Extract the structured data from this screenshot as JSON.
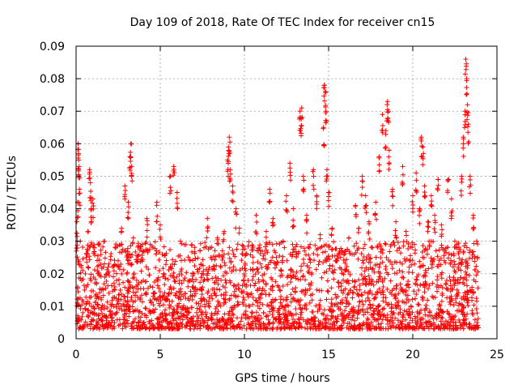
{
  "chart_data": {
    "type": "scatter",
    "title": "Day 109 of 2018, Rate Of TEC Index for receiver cn15",
    "xlabel": "GPS time / hours",
    "ylabel": "ROTI / TECUs",
    "xlim": [
      0,
      25
    ],
    "ylim": [
      0,
      0.09
    ],
    "xticks": [
      0,
      5,
      10,
      15,
      20,
      25
    ],
    "yticks": [
      0,
      0.01,
      0.02,
      0.03,
      0.04,
      0.05,
      0.06,
      0.07,
      0.08,
      0.09
    ],
    "xtick_labels": [
      "0",
      "5",
      "10",
      "15",
      "20",
      "25"
    ],
    "ytick_labels": [
      "0",
      "0.01",
      "0.02",
      "0.03",
      "0.04",
      "0.05",
      "0.06",
      "0.07",
      "0.08",
      "0.09"
    ],
    "grid": true,
    "marker": "+",
    "color": "#ff0000",
    "series": [
      {
        "name": "ROTI",
        "points": [
          [
            0.05,
            0.036
          ],
          [
            0.1,
            0.042
          ],
          [
            0.12,
            0.06
          ],
          [
            0.15,
            0.057
          ],
          [
            0.18,
            0.053
          ],
          [
            0.2,
            0.046
          ],
          [
            0.25,
            0.03
          ],
          [
            0.3,
            0.022
          ],
          [
            0.35,
            0.012
          ],
          [
            0.4,
            0.008
          ],
          [
            0.5,
            0.015
          ],
          [
            0.6,
            0.025
          ],
          [
            0.7,
            0.033
          ],
          [
            0.8,
            0.052
          ],
          [
            0.85,
            0.048
          ],
          [
            0.9,
            0.04
          ],
          [
            1.0,
            0.043
          ],
          [
            1.1,
            0.028
          ],
          [
            1.3,
            0.02
          ],
          [
            1.5,
            0.012
          ],
          [
            1.7,
            0.03
          ],
          [
            1.9,
            0.022
          ],
          [
            2.1,
            0.01
          ],
          [
            2.3,
            0.015
          ],
          [
            2.5,
            0.024
          ],
          [
            2.7,
            0.034
          ],
          [
            2.9,
            0.047
          ],
          [
            3.1,
            0.042
          ],
          [
            3.2,
            0.056
          ],
          [
            3.25,
            0.06
          ],
          [
            3.3,
            0.053
          ],
          [
            3.4,
            0.031
          ],
          [
            3.6,
            0.018
          ],
          [
            3.8,
            0.012
          ],
          [
            4.0,
            0.027
          ],
          [
            4.2,
            0.037
          ],
          [
            4.4,
            0.029
          ],
          [
            4.6,
            0.014
          ],
          [
            4.8,
            0.042
          ],
          [
            5.0,
            0.035
          ],
          [
            5.2,
            0.02
          ],
          [
            5.4,
            0.012
          ],
          [
            5.6,
            0.05
          ],
          [
            5.8,
            0.053
          ],
          [
            6.0,
            0.045
          ],
          [
            6.2,
            0.03
          ],
          [
            6.4,
            0.018
          ],
          [
            6.6,
            0.008
          ],
          [
            6.8,
            0.013
          ],
          [
            7.0,
            0.02
          ],
          [
            7.2,
            0.015
          ],
          [
            7.4,
            0.01
          ],
          [
            7.6,
            0.028
          ],
          [
            7.8,
            0.037
          ],
          [
            8.0,
            0.025
          ],
          [
            8.2,
            0.014
          ],
          [
            8.4,
            0.031
          ],
          [
            8.6,
            0.022
          ],
          [
            8.8,
            0.033
          ],
          [
            9.0,
            0.055
          ],
          [
            9.05,
            0.059
          ],
          [
            9.1,
            0.062
          ],
          [
            9.15,
            0.052
          ],
          [
            9.3,
            0.047
          ],
          [
            9.5,
            0.04
          ],
          [
            9.7,
            0.034
          ],
          [
            9.9,
            0.026
          ],
          [
            10.1,
            0.016
          ],
          [
            10.3,
            0.01
          ],
          [
            10.5,
            0.021
          ],
          [
            10.7,
            0.038
          ],
          [
            10.9,
            0.028
          ],
          [
            11.1,
            0.018
          ],
          [
            11.3,
            0.033
          ],
          [
            11.5,
            0.046
          ],
          [
            11.7,
            0.037
          ],
          [
            11.9,
            0.025
          ],
          [
            12.1,
            0.015
          ],
          [
            12.3,
            0.03
          ],
          [
            12.5,
            0.044
          ],
          [
            12.7,
            0.054
          ],
          [
            12.9,
            0.04
          ],
          [
            13.1,
            0.026
          ],
          [
            13.3,
            0.07
          ],
          [
            13.35,
            0.068
          ],
          [
            13.4,
            0.071
          ],
          [
            13.5,
            0.05
          ],
          [
            13.7,
            0.038
          ],
          [
            13.9,
            0.029
          ],
          [
            14.1,
            0.052
          ],
          [
            14.3,
            0.044
          ],
          [
            14.5,
            0.032
          ],
          [
            14.7,
            0.065
          ],
          [
            14.75,
            0.078
          ],
          [
            14.8,
            0.076
          ],
          [
            14.85,
            0.07
          ],
          [
            14.9,
            0.052
          ],
          [
            15.0,
            0.045
          ],
          [
            15.2,
            0.034
          ],
          [
            15.4,
            0.024
          ],
          [
            15.6,
            0.016
          ],
          [
            15.8,
            0.011
          ],
          [
            16.0,
            0.021
          ],
          [
            16.2,
            0.031
          ],
          [
            16.4,
            0.026
          ],
          [
            16.6,
            0.041
          ],
          [
            16.8,
            0.034
          ],
          [
            17.0,
            0.05
          ],
          [
            17.2,
            0.044
          ],
          [
            17.4,
            0.036
          ],
          [
            17.6,
            0.028
          ],
          [
            17.8,
            0.042
          ],
          [
            18.0,
            0.056
          ],
          [
            18.2,
            0.069
          ],
          [
            18.4,
            0.064
          ],
          [
            18.5,
            0.073
          ],
          [
            18.55,
            0.07
          ],
          [
            18.6,
            0.058
          ],
          [
            18.8,
            0.046
          ],
          [
            19.0,
            0.036
          ],
          [
            19.2,
            0.028
          ],
          [
            19.4,
            0.053
          ],
          [
            19.6,
            0.033
          ],
          [
            19.8,
            0.024
          ],
          [
            20.0,
            0.044
          ],
          [
            20.2,
            0.051
          ],
          [
            20.4,
            0.04
          ],
          [
            20.5,
            0.062
          ],
          [
            20.6,
            0.059
          ],
          [
            20.7,
            0.047
          ],
          [
            20.9,
            0.036
          ],
          [
            21.1,
            0.044
          ],
          [
            21.3,
            0.038
          ],
          [
            21.5,
            0.049
          ],
          [
            21.7,
            0.035
          ],
          [
            21.9,
            0.027
          ],
          [
            22.1,
            0.049
          ],
          [
            22.3,
            0.043
          ],
          [
            22.5,
            0.03
          ],
          [
            22.7,
            0.022
          ],
          [
            22.9,
            0.05
          ],
          [
            23.0,
            0.062
          ],
          [
            23.1,
            0.07
          ],
          [
            23.15,
            0.086
          ],
          [
            23.2,
            0.08
          ],
          [
            23.25,
            0.072
          ],
          [
            23.3,
            0.066
          ],
          [
            23.4,
            0.05
          ],
          [
            23.6,
            0.038
          ],
          [
            23.8,
            0.03
          ]
        ]
      }
    ],
    "dense_band": {
      "description": "dense noise floor of ROTI values between roughly 0.005 and 0.03 TECU/min across the whole day",
      "x_range": [
        0,
        23.9
      ],
      "y_min": 0.003,
      "y_max": 0.03,
      "count": 2600
    }
  }
}
